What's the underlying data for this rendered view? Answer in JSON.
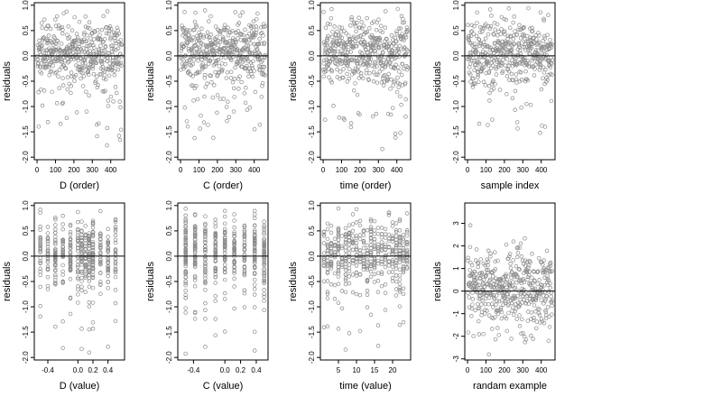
{
  "chart_data": [
    {
      "type": "scatter",
      "xlabel": "D (order)",
      "ylabel": "residuals",
      "xlim": [
        -15,
        475
      ],
      "ylim": [
        -2.05,
        1.05
      ],
      "xticks": [
        0,
        100,
        200,
        300,
        400
      ],
      "xtick_labels": [
        "0",
        "100",
        "200",
        "300",
        "400"
      ],
      "yticks": [
        1.0,
        0.5,
        0.0,
        -0.5,
        -1.0,
        -1.5,
        -2.0
      ],
      "ytick_labels": [
        "1.0",
        "0.5",
        "0.0",
        "-0.5",
        "-1.0",
        "-1.5",
        "-2.0"
      ],
      "hline": 0,
      "x_mode": "index",
      "x_range": [
        1,
        460
      ],
      "y_model": "residual",
      "seed": 11
    },
    {
      "type": "scatter",
      "xlabel": "C (order)",
      "ylabel": "residuals",
      "xlim": [
        -15,
        475
      ],
      "ylim": [
        -2.05,
        1.05
      ],
      "xticks": [
        0,
        100,
        200,
        300,
        400
      ],
      "xtick_labels": [
        "0",
        "100",
        "200",
        "300",
        "400"
      ],
      "yticks": [
        1.0,
        0.5,
        0.0,
        -0.5,
        -1.0,
        -1.5,
        -2.0
      ],
      "ytick_labels": [
        "1.0",
        "0.5",
        "0.0",
        "-0.5",
        "-1.0",
        "-1.5",
        "-2.0"
      ],
      "hline": 0,
      "x_mode": "index",
      "x_range": [
        1,
        460
      ],
      "y_model": "residual",
      "seed": 23
    },
    {
      "type": "scatter",
      "xlabel": "time (order)",
      "ylabel": "residuals",
      "xlim": [
        -15,
        475
      ],
      "ylim": [
        -2.05,
        1.05
      ],
      "xticks": [
        0,
        100,
        200,
        300,
        400
      ],
      "xtick_labels": [
        "0",
        "100",
        "200",
        "300",
        "400"
      ],
      "yticks": [
        1.0,
        0.5,
        0.0,
        -0.5,
        -1.0,
        -1.5,
        -2.0
      ],
      "ytick_labels": [
        "1.0",
        "0.5",
        "0.0",
        "-0.5",
        "-1.0",
        "-1.5",
        "-2.0"
      ],
      "hline": 0,
      "x_mode": "index",
      "x_range": [
        1,
        460
      ],
      "y_model": "residual",
      "seed": 37
    },
    {
      "type": "scatter",
      "xlabel": "sample index",
      "ylabel": "residuals",
      "xlim": [
        -15,
        475
      ],
      "ylim": [
        -2.05,
        1.05
      ],
      "xticks": [
        0,
        100,
        200,
        300,
        400
      ],
      "xtick_labels": [
        "0",
        "100",
        "200",
        "300",
        "400"
      ],
      "yticks": [
        1.0,
        0.5,
        0.0,
        -0.5,
        -1.0,
        -1.5,
        -2.0
      ],
      "ytick_labels": [
        "1.0",
        "0.5",
        "0.0",
        "-0.5",
        "-1.0",
        "-1.5",
        "-2.0"
      ],
      "hline": 0,
      "x_mode": "index",
      "x_range": [
        1,
        460
      ],
      "y_model": "residual",
      "seed": 41
    },
    {
      "type": "scatter",
      "xlabel": "D (value)",
      "ylabel": "residuals",
      "xlim": [
        -0.58,
        0.62
      ],
      "ylim": [
        -2.05,
        1.05
      ],
      "xticks": [
        -0.4,
        0.0,
        0.2,
        0.4
      ],
      "xtick_labels": [
        "-0.4",
        "0.0",
        "0.2",
        "0.4"
      ],
      "yticks": [
        1.0,
        0.5,
        0.0,
        -0.5,
        -1.0,
        -1.5,
        -2.0
      ],
      "ytick_labels": [
        "1.0",
        "0.5",
        "0.0",
        "-0.5",
        "-1.0",
        "-1.5",
        "-2.0"
      ],
      "hline": 0,
      "x_mode": "columns",
      "x_columns": [
        -0.5,
        -0.4,
        -0.3,
        -0.2,
        -0.1,
        0.0,
        0.05,
        0.1,
        0.15,
        0.2,
        0.3,
        0.4,
        0.5
      ],
      "y_model": "residual",
      "seed": 53
    },
    {
      "type": "scatter",
      "xlabel": "C (value)",
      "ylabel": "residuals",
      "xlim": [
        -0.6,
        0.55
      ],
      "ylim": [
        -2.05,
        1.05
      ],
      "xticks": [
        -0.4,
        0.0,
        0.2,
        0.4
      ],
      "xtick_labels": [
        "-0.4",
        "0.0",
        "0.2",
        "0.4"
      ],
      "yticks": [
        1.0,
        0.5,
        0.0,
        -0.5,
        -1.0,
        -1.5,
        -2.0
      ],
      "ytick_labels": [
        "1.0",
        "0.5",
        "0.0",
        "-0.5",
        "-1.0",
        "-1.5",
        "-2.0"
      ],
      "hline": 0,
      "x_mode": "columns",
      "x_columns": [
        -0.5,
        -0.38,
        -0.25,
        -0.12,
        0.0,
        0.12,
        0.25,
        0.38,
        0.5
      ],
      "y_model": "residual",
      "seed": 67
    },
    {
      "type": "scatter",
      "xlabel": "time (value)",
      "ylabel": "residuals",
      "xlim": [
        0,
        25
      ],
      "ylim": [
        -2.05,
        1.05
      ],
      "xticks": [
        5,
        10,
        15,
        20
      ],
      "xtick_labels": [
        "5",
        "10",
        "15",
        "20"
      ],
      "yticks": [
        1.0,
        0.5,
        0.0,
        -0.5,
        -1.0,
        -1.5,
        -2.0
      ],
      "ytick_labels": [
        "1.0",
        "0.5",
        "0.0",
        "-0.5",
        "-1.0",
        "-1.5",
        "-2.0"
      ],
      "hline": 0,
      "x_mode": "columns",
      "x_columns": [
        1,
        2,
        3,
        4,
        5,
        6,
        7,
        8,
        9,
        10,
        11,
        12,
        13,
        14,
        15,
        16,
        17,
        18,
        19,
        20,
        21,
        22,
        23,
        24
      ],
      "y_model": "residual",
      "seed": 79
    },
    {
      "type": "scatter",
      "xlabel": "randam example",
      "ylabel": "residuals",
      "xlim": [
        -15,
        475
      ],
      "ylim": [
        -3.05,
        3.9
      ],
      "xticks": [
        0,
        100,
        200,
        300,
        400
      ],
      "xtick_labels": [
        "0",
        "100",
        "200",
        "300",
        "400"
      ],
      "yticks": [
        3,
        2,
        1,
        0,
        -1,
        -2,
        -3
      ],
      "ytick_labels": [
        "3",
        "2",
        "1",
        "0",
        "-1",
        "-2",
        "-3"
      ],
      "hline": 0,
      "x_mode": "index",
      "x_range": [
        1,
        460
      ],
      "y_model": "normal",
      "seed": 97
    }
  ],
  "style": {
    "point_color": "#8a8a8a",
    "hline_color": "#000000",
    "frame_color": "#000000",
    "background": "#ffffff"
  }
}
